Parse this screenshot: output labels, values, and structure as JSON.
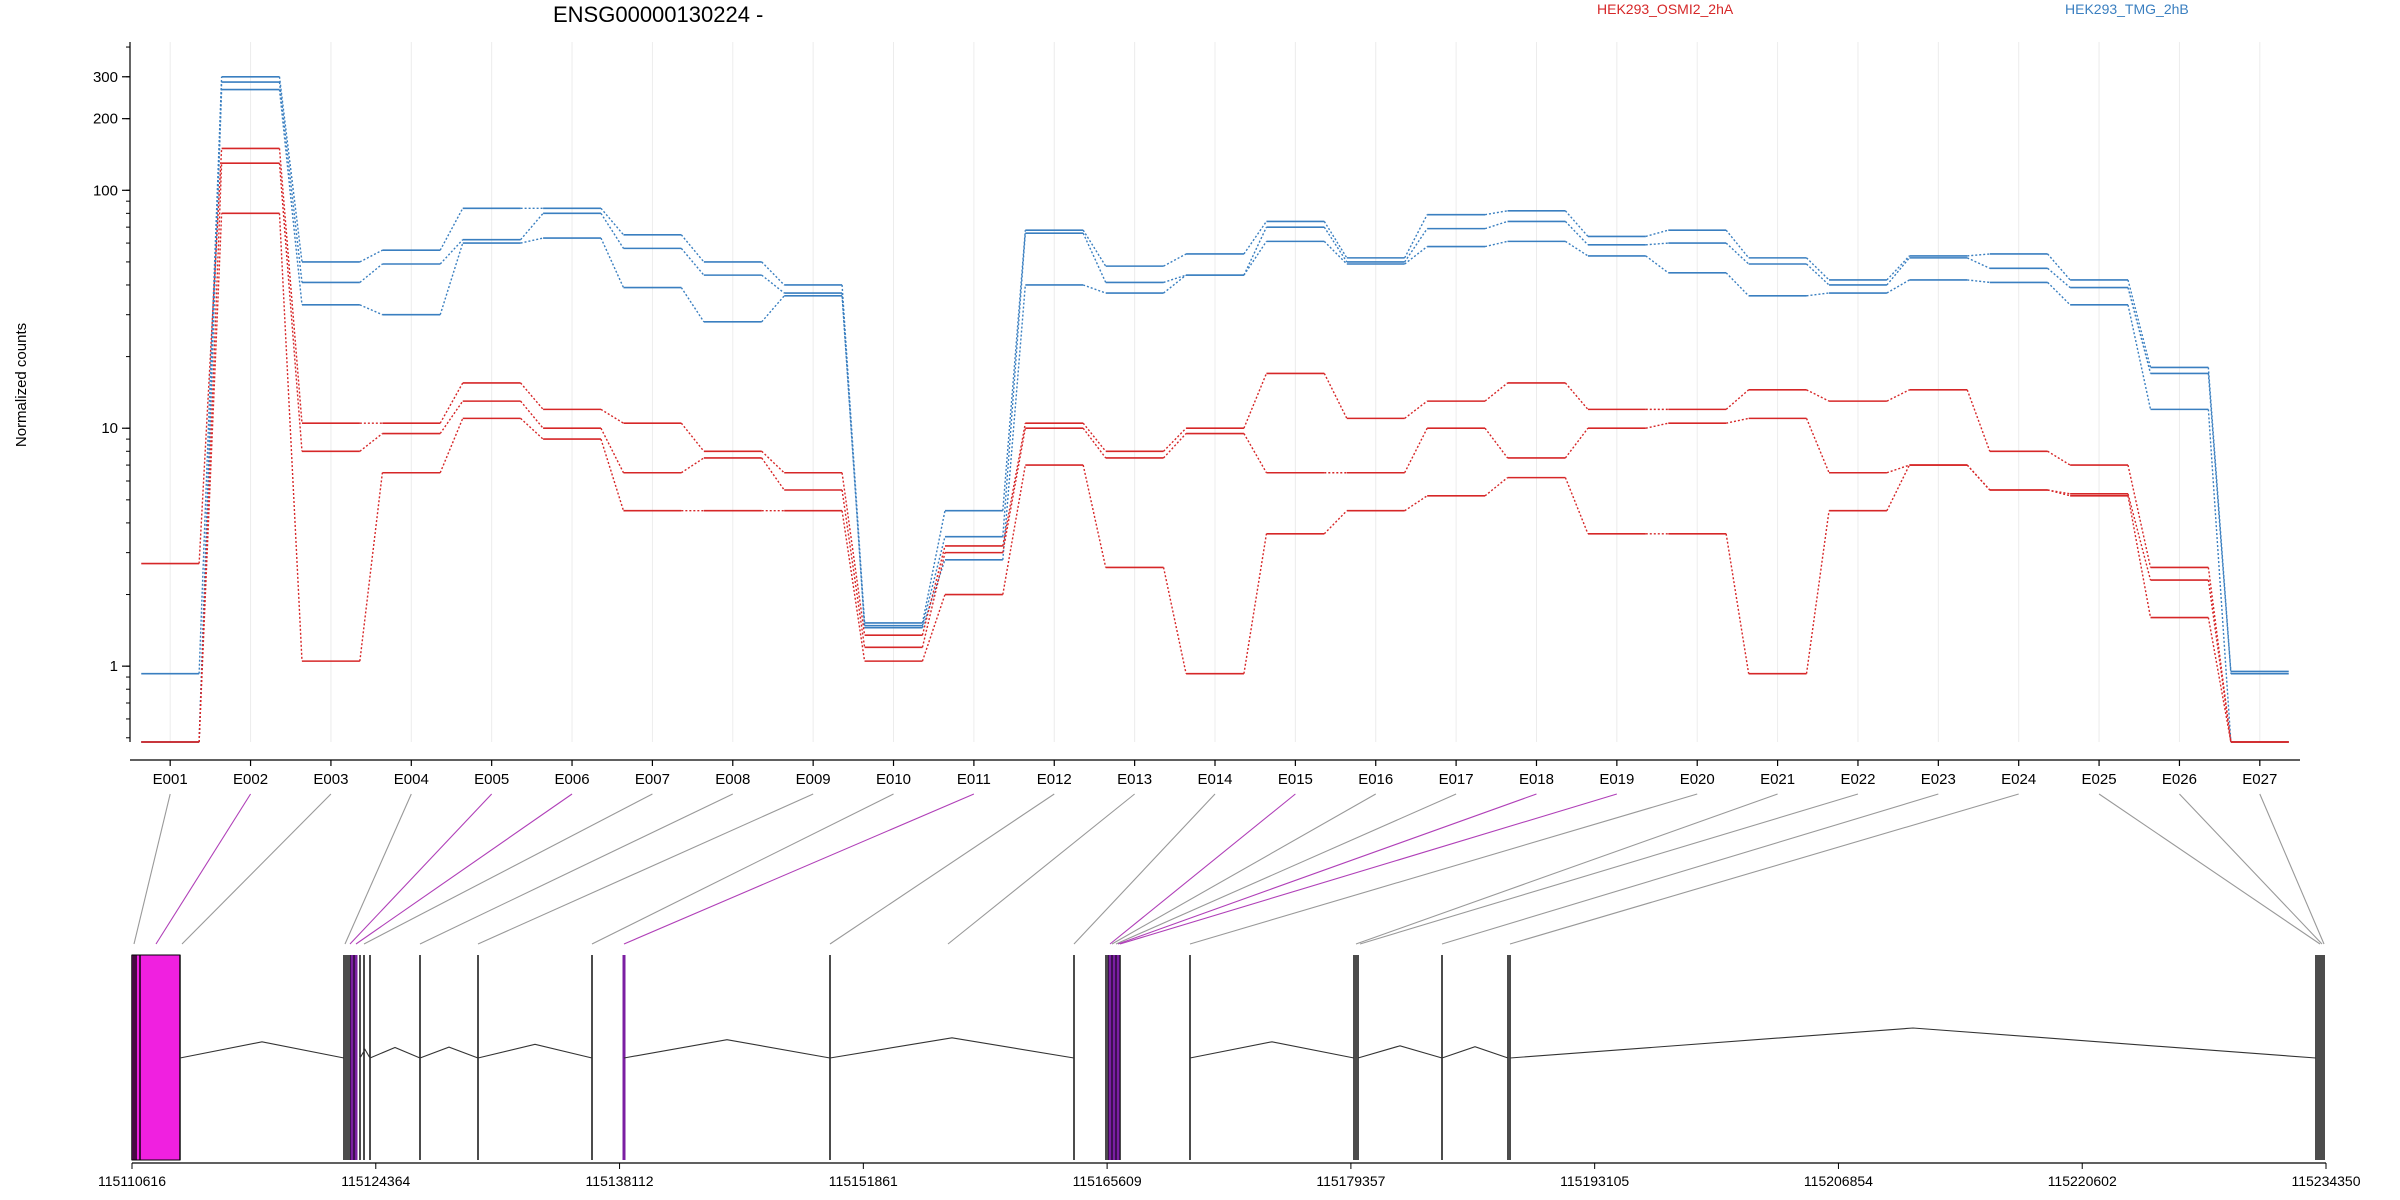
{
  "chart_data": {
    "type": "line",
    "title": "ENSG00000130224 -",
    "ylabel": "Normalized counts",
    "yscale": "log",
    "ylim": [
      0.48,
      420
    ],
    "yticks": [
      1,
      10,
      100,
      200,
      300
    ],
    "categories": [
      "E001",
      "E002",
      "E003",
      "E004",
      "E005",
      "E006",
      "E007",
      "E008",
      "E009",
      "E010",
      "E011",
      "E012",
      "E013",
      "E014",
      "E015",
      "E016",
      "E017",
      "E018",
      "E019",
      "E020",
      "E021",
      "E022",
      "E023",
      "E024",
      "E025",
      "E026",
      "E027"
    ],
    "legend": [
      {
        "label": "HEK293_OSMI2_2hA",
        "color": "#d62728"
      },
      {
        "label": "HEK293_TMG_2hB",
        "color": "#3a7fc0"
      }
    ],
    "series": [
      {
        "group": "HEK293_TMG_2hB",
        "color": "#3a7fc0",
        "values": [
          0.93,
          300,
          50,
          56,
          84,
          84,
          65,
          50,
          40,
          1.52,
          4.5,
          68,
          48,
          54,
          74,
          52,
          79,
          82,
          64,
          68,
          52,
          42,
          53,
          54,
          42,
          18,
          0.95
        ]
      },
      {
        "group": "HEK293_TMG_2hB",
        "color": "#3a7fc0",
        "values": [
          0.48,
          285,
          41,
          49,
          62,
          80,
          57,
          44,
          37,
          1.48,
          3.5,
          66,
          41,
          44,
          70,
          50,
          69,
          74,
          59,
          60,
          49,
          40,
          52,
          47,
          39,
          17,
          0.93
        ]
      },
      {
        "group": "HEK293_TMG_2hB",
        "color": "#3a7fc0",
        "values": [
          0.48,
          265,
          33,
          30,
          60,
          63,
          39,
          28,
          36,
          1.45,
          2.8,
          40,
          37,
          44,
          61,
          49,
          58,
          61,
          53,
          45,
          36,
          37,
          42,
          41,
          33,
          12,
          0.48
        ]
      },
      {
        "group": "HEK293_OSMI2_2hA",
        "color": "#d62728",
        "values": [
          2.7,
          150,
          10.5,
          10.5,
          15.5,
          12,
          10.5,
          8,
          6.5,
          1.35,
          3.2,
          10.5,
          8,
          10,
          17,
          11,
          13,
          15.5,
          12,
          12,
          14.5,
          13,
          14.5,
          8,
          7,
          2.6,
          0.48
        ]
      },
      {
        "group": "HEK293_OSMI2_2hA",
        "color": "#d62728",
        "values": [
          0.48,
          130,
          8,
          9.5,
          13,
          10,
          6.5,
          7.5,
          5.5,
          1.2,
          3.0,
          10,
          7.5,
          9.5,
          6.5,
          6.5,
          10,
          7.5,
          10,
          10.5,
          11,
          6.5,
          7,
          5.5,
          5.3,
          2.3,
          0.48
        ]
      },
      {
        "group": "HEK293_OSMI2_2hA",
        "color": "#d62728",
        "values": [
          0.48,
          80,
          1.05,
          6.5,
          11,
          9,
          4.5,
          4.5,
          4.5,
          1.05,
          2.0,
          7,
          2.6,
          0.93,
          3.6,
          4.5,
          5.2,
          6.2,
          3.6,
          3.6,
          0.93,
          4.5,
          7,
          5.5,
          5.2,
          1.6,
          0.48
        ]
      }
    ],
    "gene_model": {
      "coordinate_ticks": [
        "115110616",
        "115124364",
        "115138112",
        "115151861",
        "115165609",
        "115179357",
        "115193105",
        "115206854",
        "115220602",
        "115234350"
      ]
    }
  }
}
